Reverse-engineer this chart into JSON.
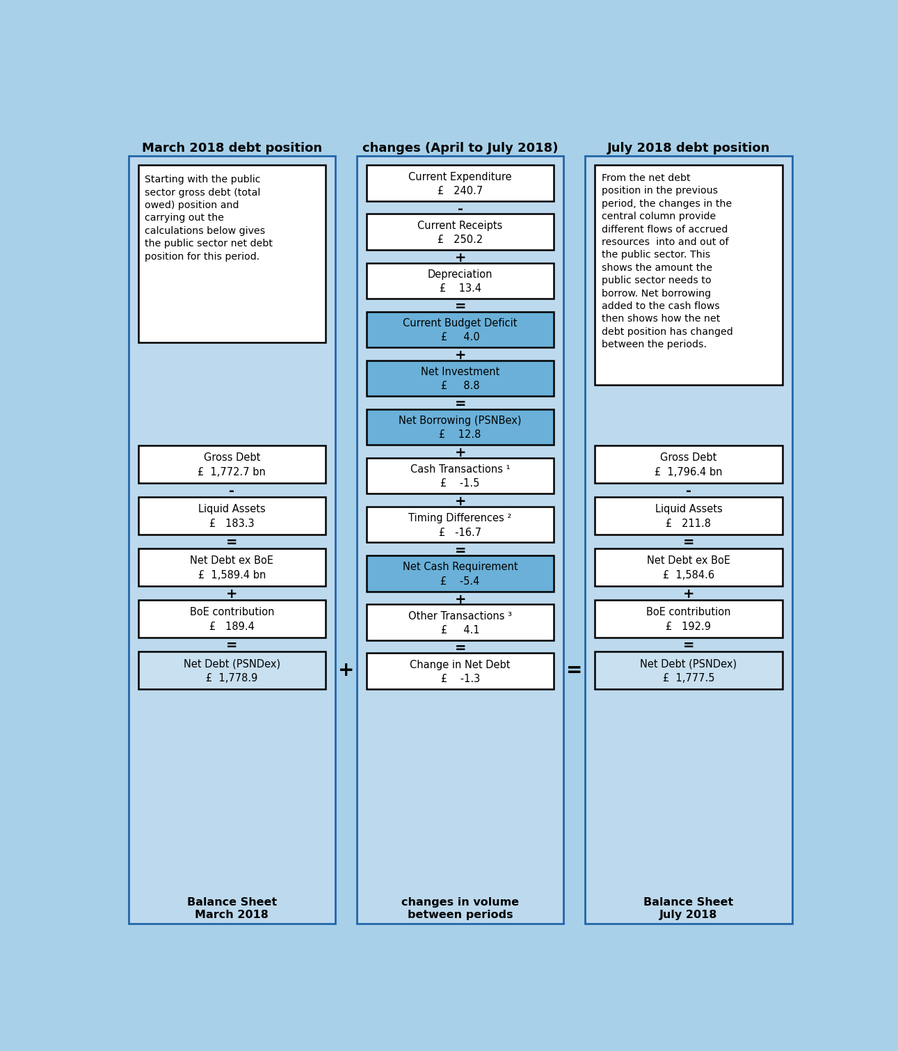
{
  "title_left": "March 2018 debt position",
  "title_center": "changes (April to July 2018)",
  "title_right": "July 2018 debt position",
  "subtitle_left": "Balance Sheet\nMarch 2018",
  "subtitle_center": "changes in volume\nbetween periods",
  "subtitle_right": "Balance Sheet\nJuly 2018",
  "bg_color": "#a8d0e8",
  "panel_bg": "#bdd9ed",
  "box_white_bg": "#ffffff",
  "box_blue_bg": "#6ab0d8",
  "box_light_blue_bg": "#c8e0f0",
  "left_text_box": "Starting with the public\nsector gross debt (total\nowed) position and\ncarrying out the\ncalculations below gives\nthe public sector net debt\nposition for this period.",
  "right_text_box": "From the net debt\nposition in the previous\nperiod, the changes in the\ncentral column provide\ndifferent flows of accrued\nresources  into and out of\nthe public sector. This\nshows the amount the\npublic sector needs to\nborrow. Net borrowing\nadded to the cash flows\nthen shows how the net\ndebt position has changed\nbetween the periods.",
  "left_boxes": [
    {
      "label": "Gross Debt",
      "value": "£  1,772.7 bn",
      "bg": "white",
      "operator": "-"
    },
    {
      "label": "Liquid Assets",
      "value": "£   183.3",
      "bg": "white",
      "operator": "="
    },
    {
      "label": "Net Debt ex BoE",
      "value": "£  1,589.4 bn",
      "bg": "white",
      "operator": "+"
    },
    {
      "label": "BoE contribution",
      "value": "£   189.4",
      "bg": "white",
      "operator": "="
    },
    {
      "label": "Net Debt (PSNDex)",
      "value": "£  1,778.9",
      "bg": "lightblue",
      "operator": ""
    }
  ],
  "center_boxes": [
    {
      "label": "Current Expenditure",
      "value": "£   240.7",
      "bg": "white",
      "operator": "-"
    },
    {
      "label": "Current Receipts",
      "value": "£   250.2",
      "bg": "white",
      "operator": "+"
    },
    {
      "label": "Depreciation",
      "value": "£    13.4",
      "bg": "white",
      "operator": "="
    },
    {
      "label": "Current Budget Deficit",
      "value": "£     4.0",
      "bg": "blue",
      "operator": "+"
    },
    {
      "label": "Net Investment",
      "value": "£     8.8",
      "bg": "blue",
      "operator": "="
    },
    {
      "label": "Net Borrowing (PSNBex)",
      "value": "£    12.8",
      "bg": "blue",
      "operator": "+"
    },
    {
      "label": "Cash Transactions ¹",
      "value": "£    -1.5",
      "bg": "white",
      "operator": "+"
    },
    {
      "label": "Timing Differences ²",
      "value": "£   -16.7",
      "bg": "white",
      "operator": "="
    },
    {
      "label": "Net Cash Requirement",
      "value": "£    -5.4",
      "bg": "blue",
      "operator": "+"
    },
    {
      "label": "Other Transactions ³",
      "value": "£     4.1",
      "bg": "white",
      "operator": "="
    },
    {
      "label": "Change in Net Debt",
      "value": "£    -1.3",
      "bg": "white",
      "operator": ""
    }
  ],
  "right_boxes": [
    {
      "label": "Gross Debt",
      "value": "£  1,796.4 bn",
      "bg": "white",
      "operator": "-"
    },
    {
      "label": "Liquid Assets",
      "value": "£   211.8",
      "bg": "white",
      "operator": "="
    },
    {
      "label": "Net Debt ex BoE",
      "value": "£  1,584.6",
      "bg": "white",
      "operator": "+"
    },
    {
      "label": "BoE contribution",
      "value": "£   192.9",
      "bg": "white",
      "operator": "="
    },
    {
      "label": "Net Debt (PSNDex)",
      "value": "£  1,777.5",
      "bg": "lightblue",
      "operator": ""
    }
  ]
}
